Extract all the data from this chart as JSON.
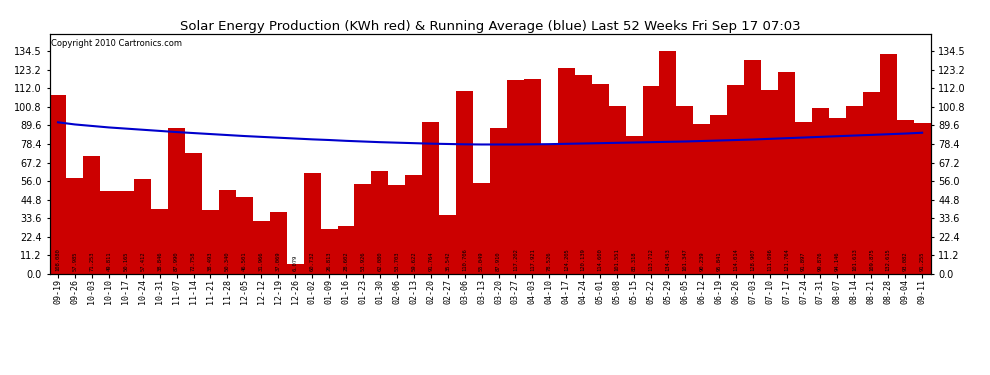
{
  "title": "Solar Energy Production (KWh red) & Running Average (blue) Last 52 Weeks Fri Sep 17 07:03",
  "copyright": "Copyright 2010 Cartronics.com",
  "bar_color": "#cc0000",
  "line_color": "#0000cc",
  "background_color": "#ffffff",
  "plot_bg_color": "#ffffff",
  "grid_color": "#bbbbbb",
  "ylim": [
    0,
    145
  ],
  "yticks": [
    0.0,
    11.2,
    22.4,
    33.6,
    44.8,
    56.0,
    67.2,
    78.4,
    89.6,
    100.8,
    112.0,
    123.2,
    134.5
  ],
  "categories": [
    "09-19",
    "09-26",
    "10-03",
    "10-10",
    "10-17",
    "10-24",
    "10-31",
    "11-07",
    "11-14",
    "11-21",
    "11-28",
    "12-05",
    "12-12",
    "12-19",
    "12-26",
    "01-02",
    "01-09",
    "01-16",
    "01-23",
    "01-30",
    "02-06",
    "02-13",
    "02-20",
    "02-27",
    "03-06",
    "03-13",
    "03-20",
    "03-27",
    "04-03",
    "04-10",
    "04-17",
    "04-24",
    "05-01",
    "05-08",
    "05-15",
    "05-22",
    "05-29",
    "06-05",
    "06-12",
    "06-19",
    "06-26",
    "07-03",
    "07-10",
    "07-17",
    "07-24",
    "07-31",
    "08-07",
    "08-14",
    "08-21",
    "08-28",
    "09-04",
    "09-11"
  ],
  "values": [
    108.08,
    57.985,
    71.253,
    49.811,
    50.165,
    57.412,
    38.846,
    87.99,
    72.758,
    38.493,
    50.34,
    46.501,
    31.966,
    37.069,
    6.079,
    60.732,
    26.813,
    28.602,
    53.926,
    62.08,
    53.703,
    59.622,
    91.764,
    35.542,
    110.706,
    55.049,
    87.91,
    117.202,
    117.921,
    78.526,
    124.205,
    120.139,
    114.6,
    101.551,
    83.318,
    113.712,
    134.453,
    101.347,
    90.239,
    95.841,
    114.014,
    128.907,
    111.096,
    121.764,
    91.897,
    99.876,
    94.146,
    101.613,
    109.875,
    132.615,
    93.082,
    91.255
  ],
  "running_avg": [
    91.5,
    90.2,
    89.3,
    88.4,
    87.7,
    87.0,
    86.3,
    85.6,
    85.0,
    84.4,
    83.8,
    83.2,
    82.7,
    82.2,
    81.7,
    81.2,
    80.8,
    80.3,
    79.9,
    79.5,
    79.2,
    78.9,
    78.6,
    78.4,
    78.2,
    78.1,
    78.1,
    78.1,
    78.2,
    78.3,
    78.5,
    78.7,
    78.9,
    79.1,
    79.3,
    79.5,
    79.7,
    79.9,
    80.2,
    80.5,
    80.8,
    81.1,
    81.5,
    81.9,
    82.3,
    82.7,
    83.1,
    83.5,
    83.9,
    84.3,
    84.7,
    85.2
  ]
}
